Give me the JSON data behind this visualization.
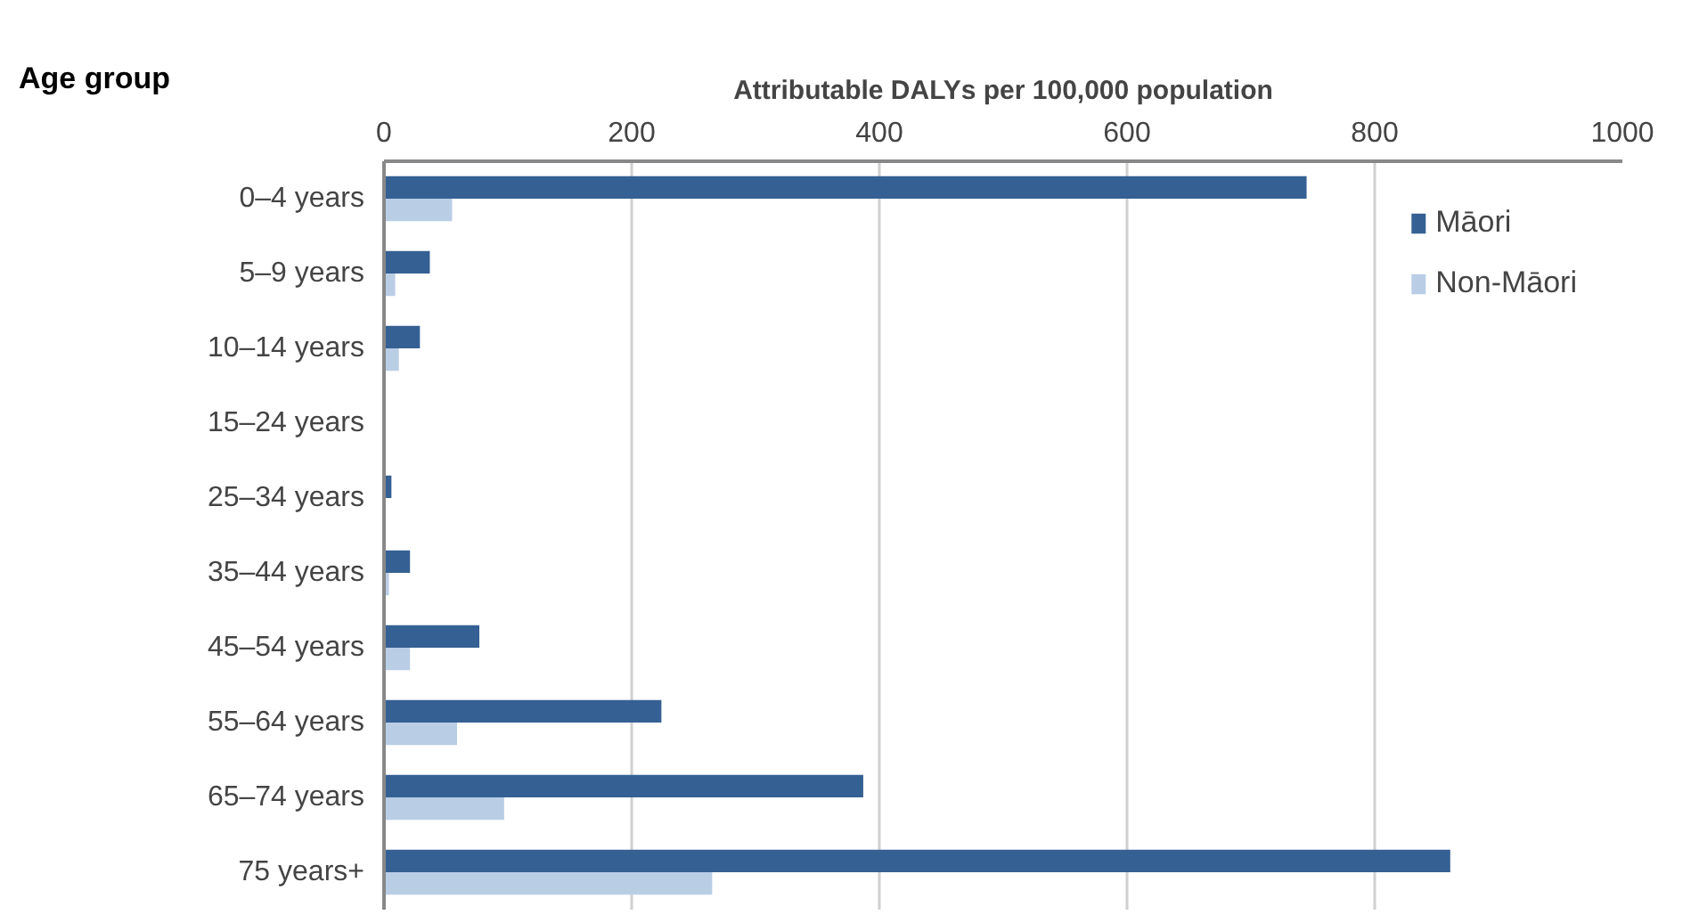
{
  "chart_data": {
    "type": "bar",
    "orientation": "horizontal",
    "xlabel": "Attributable DALYs per 100,000 population",
    "ylabel": "Age group",
    "categories": [
      "0–4 years",
      "5–9 years",
      "10–14 years",
      "15–24 years",
      "25–34 years",
      "35–44 years",
      "45–54 years",
      "55–64 years",
      "65–74 years",
      "75 years+"
    ],
    "series": [
      {
        "name": "Māori",
        "color": "#356093",
        "values": [
          745,
          37,
          29,
          1,
          6,
          21,
          77,
          224,
          387,
          861
        ]
      },
      {
        "name": "Non-Māori",
        "color": "#b9cde5",
        "values": [
          55,
          9,
          12,
          0,
          null,
          4,
          21,
          59,
          97,
          265
        ]
      }
    ],
    "xlim": [
      0,
      1000
    ],
    "xticks": [
      0,
      200,
      400,
      600,
      800,
      1000
    ],
    "grid": "x",
    "legend": "top right"
  }
}
